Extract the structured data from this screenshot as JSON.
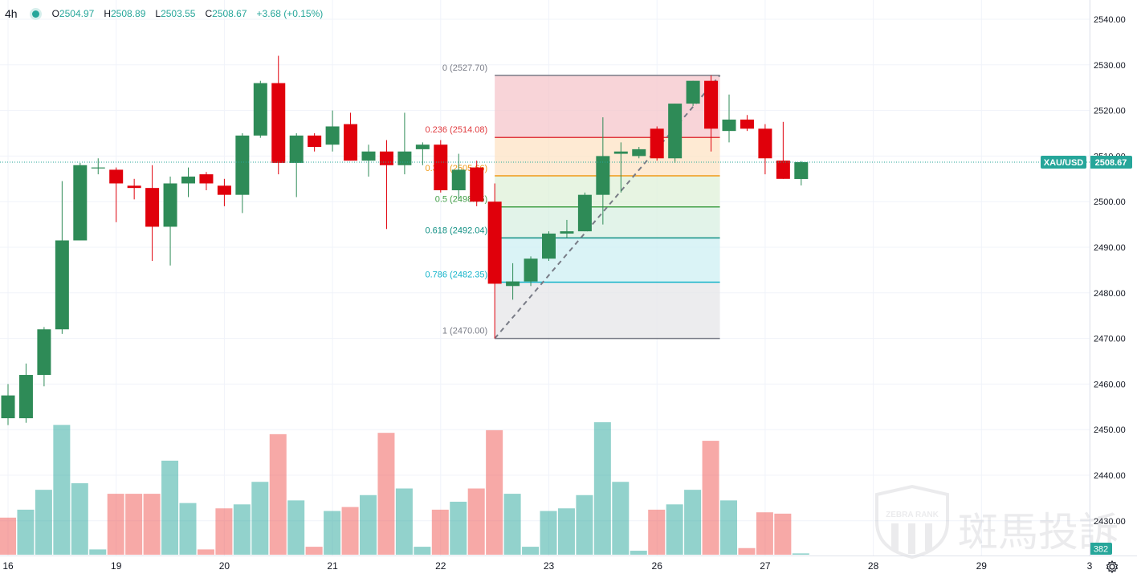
{
  "legend": {
    "timeframe": "4h",
    "open_label": "O",
    "open": "2504.97",
    "high_label": "H",
    "high": "2508.89",
    "low_label": "L",
    "low": "2503.55",
    "close_label": "C",
    "close": "2508.67",
    "change": "+3.68 (+0.15%)"
  },
  "price_tag": {
    "symbol": "XAU/USD",
    "price": "2508.67",
    "value": 2508.67
  },
  "volume_tag": {
    "value": "382"
  },
  "watermark": {
    "brand_text": "斑馬投訴",
    "logo_text": "ZEBRA RANK"
  },
  "colors": {
    "up": "#26a69a",
    "down": "#ef5350",
    "up_body": "#2e8b57",
    "down_body": "#e0000b",
    "vol_up": "#26a69a",
    "vol_down": "#ef5350"
  },
  "chart_data": {
    "type": "candlestick",
    "symbol": "XAU/USD",
    "timeframe": "4h",
    "y_axis": {
      "ticks": [
        2430,
        2440,
        2450,
        2460,
        2470,
        2480,
        2490,
        2500,
        2510,
        2520,
        2530,
        2540
      ],
      "range": [
        2423,
        2543
      ]
    },
    "x_axis_labels": [
      {
        "bar": 0,
        "label": "16"
      },
      {
        "bar": 6,
        "label": "19"
      },
      {
        "bar": 12,
        "label": "20"
      },
      {
        "bar": 18,
        "label": "21"
      },
      {
        "bar": 24,
        "label": "22"
      },
      {
        "bar": 30,
        "label": "23"
      },
      {
        "bar": 36,
        "label": "26"
      },
      {
        "bar": 42,
        "label": "27"
      },
      {
        "bar": 48,
        "label": "28"
      },
      {
        "bar": 54,
        "label": "29"
      },
      {
        "bar": 60,
        "label": "3"
      }
    ],
    "candles": [
      [
        2452.5,
        2460.0,
        2451.0,
        2457.5
      ],
      [
        2452.5,
        2464.5,
        2451.5,
        2462.0
      ],
      [
        2462.0,
        2472.5,
        2459.5,
        2472.0
      ],
      [
        2472.0,
        2504.5,
        2471.0,
        2491.5
      ],
      [
        2491.5,
        2508.5,
        2491.5,
        2508.0
      ],
      [
        2507.5,
        2509.5,
        2506.0,
        2507.5
      ],
      [
        2507.0,
        2507.5,
        2495.5,
        2504.0
      ],
      [
        2503.5,
        2505.0,
        2500.5,
        2503.0
      ],
      [
        2503.0,
        2508.0,
        2487.0,
        2494.5
      ],
      [
        2494.5,
        2505.5,
        2486.0,
        2504.0
      ],
      [
        2504.0,
        2507.5,
        2501.0,
        2505.5
      ],
      [
        2506.0,
        2506.5,
        2502.5,
        2504.0
      ],
      [
        2503.5,
        2505.0,
        2499.0,
        2501.5
      ],
      [
        2501.5,
        2515.0,
        2497.5,
        2514.5
      ],
      [
        2514.5,
        2526.5,
        2514.0,
        2526.0
      ],
      [
        2526.0,
        2532.0,
        2506.0,
        2508.5
      ],
      [
        2508.5,
        2515.0,
        2501.0,
        2514.5
      ],
      [
        2514.5,
        2515.0,
        2511.0,
        2512.0
      ],
      [
        2512.5,
        2520.0,
        2511.0,
        2516.5
      ],
      [
        2517.0,
        2519.5,
        2509.0,
        2509.0
      ],
      [
        2509.0,
        2512.5,
        2505.5,
        2511.0
      ],
      [
        2511.0,
        2513.5,
        2494.0,
        2508.0
      ],
      [
        2508.0,
        2519.5,
        2506.0,
        2511.0
      ],
      [
        2511.5,
        2513.0,
        2508.0,
        2512.5
      ],
      [
        2512.5,
        2513.5,
        2502.0,
        2502.5
      ],
      [
        2502.5,
        2510.5,
        2500.5,
        2507.0
      ],
      [
        2507.5,
        2509.0,
        2499.0,
        2500.0
      ],
      [
        2500.0,
        2504.0,
        2470.0,
        2482.0
      ],
      [
        2481.5,
        2486.5,
        2478.5,
        2482.5
      ],
      [
        2482.5,
        2488.0,
        2481.5,
        2487.5
      ],
      [
        2487.5,
        2493.5,
        2487.0,
        2493.0
      ],
      [
        2493.0,
        2496.0,
        2492.0,
        2493.5
      ],
      [
        2493.5,
        2502.0,
        2493.5,
        2501.5
      ],
      [
        2501.5,
        2518.5,
        2495.0,
        2510.0
      ],
      [
        2510.5,
        2513.0,
        2502.0,
        2511.0
      ],
      [
        2510.0,
        2512.0,
        2509.5,
        2511.5
      ],
      [
        2516.0,
        2516.5,
        2509.0,
        2509.5
      ],
      [
        2509.5,
        2521.5,
        2508.5,
        2521.5
      ],
      [
        2521.5,
        2526.5,
        2521.0,
        2526.5
      ],
      [
        2526.5,
        2527.7,
        2511.0,
        2516.0
      ],
      [
        2515.5,
        2523.5,
        2513.0,
        2518.0
      ],
      [
        2518.0,
        2519.0,
        2515.5,
        2516.0
      ],
      [
        2516.0,
        2517.0,
        2506.0,
        2509.5
      ],
      [
        2509.0,
        2517.5,
        2505.0,
        2505.0
      ],
      [
        2504.97,
        2508.89,
        2503.55,
        2508.67
      ]
    ],
    "volume": [
      {
        "up": false,
        "v": 0.28
      },
      {
        "up": true,
        "v": 0.34
      },
      {
        "up": true,
        "v": 0.49
      },
      {
        "up": true,
        "v": 0.98
      },
      {
        "up": true,
        "v": 0.54
      },
      {
        "up": true,
        "v": 0.04
      },
      {
        "up": false,
        "v": 0.46
      },
      {
        "up": false,
        "v": 0.46
      },
      {
        "up": false,
        "v": 0.46
      },
      {
        "up": true,
        "v": 0.71
      },
      {
        "up": true,
        "v": 0.39
      },
      {
        "up": false,
        "v": 0.04
      },
      {
        "up": false,
        "v": 0.35
      },
      {
        "up": true,
        "v": 0.38
      },
      {
        "up": true,
        "v": 0.55
      },
      {
        "up": false,
        "v": 0.91
      },
      {
        "up": true,
        "v": 0.41
      },
      {
        "up": false,
        "v": 0.06
      },
      {
        "up": true,
        "v": 0.33
      },
      {
        "up": false,
        "v": 0.36
      },
      {
        "up": true,
        "v": 0.45
      },
      {
        "up": false,
        "v": 0.92
      },
      {
        "up": true,
        "v": 0.5
      },
      {
        "up": true,
        "v": 0.06
      },
      {
        "up": false,
        "v": 0.34
      },
      {
        "up": true,
        "v": 0.4
      },
      {
        "up": false,
        "v": 0.5
      },
      {
        "up": false,
        "v": 0.94
      },
      {
        "up": true,
        "v": 0.46
      },
      {
        "up": true,
        "v": 0.06
      },
      {
        "up": true,
        "v": 0.33
      },
      {
        "up": true,
        "v": 0.35
      },
      {
        "up": true,
        "v": 0.45
      },
      {
        "up": true,
        "v": 1.0
      },
      {
        "up": true,
        "v": 0.55
      },
      {
        "up": true,
        "v": 0.03
      },
      {
        "up": false,
        "v": 0.34
      },
      {
        "up": true,
        "v": 0.38
      },
      {
        "up": true,
        "v": 0.49
      },
      {
        "up": false,
        "v": 0.86
      },
      {
        "up": true,
        "v": 0.41
      },
      {
        "up": false,
        "v": 0.05
      },
      {
        "up": false,
        "v": 0.32
      },
      {
        "up": false,
        "v": 0.31
      },
      {
        "up": true,
        "v": 0.01
      }
    ],
    "fibonacci": {
      "from_bar": 27,
      "to_bar": 39,
      "levels": [
        {
          "ratio": "0",
          "price": 2527.7,
          "label": "0 (2527.70)",
          "color": "#787b86",
          "fill": "#f6c5cb"
        },
        {
          "ratio": "0.236",
          "price": 2514.08,
          "label": "0.236 (2514.08)",
          "color": "#e03a3e",
          "fill": "#fde3c4"
        },
        {
          "ratio": "0.382",
          "price": 2505.66,
          "label": "0.382 (2505.66)",
          "color": "#f09a16",
          "fill": "#dff0d8"
        },
        {
          "ratio": "0.5",
          "price": 2498.85,
          "label": "0.5 (2498.85)",
          "color": "#43a047",
          "fill": "#d8efe2"
        },
        {
          "ratio": "0.618",
          "price": 2492.04,
          "label": "0.618 (2492.04)",
          "color": "#0f8f83",
          "fill": "#cdeff3"
        },
        {
          "ratio": "0.786",
          "price": 2482.35,
          "label": "0.786 (2482.35)",
          "color": "#12b3c9",
          "fill": "#e6e6e8"
        },
        {
          "ratio": "1",
          "price": 2470.0,
          "label": "1 (2470.00)",
          "color": "#787b86",
          "fill": null
        }
      ]
    }
  }
}
